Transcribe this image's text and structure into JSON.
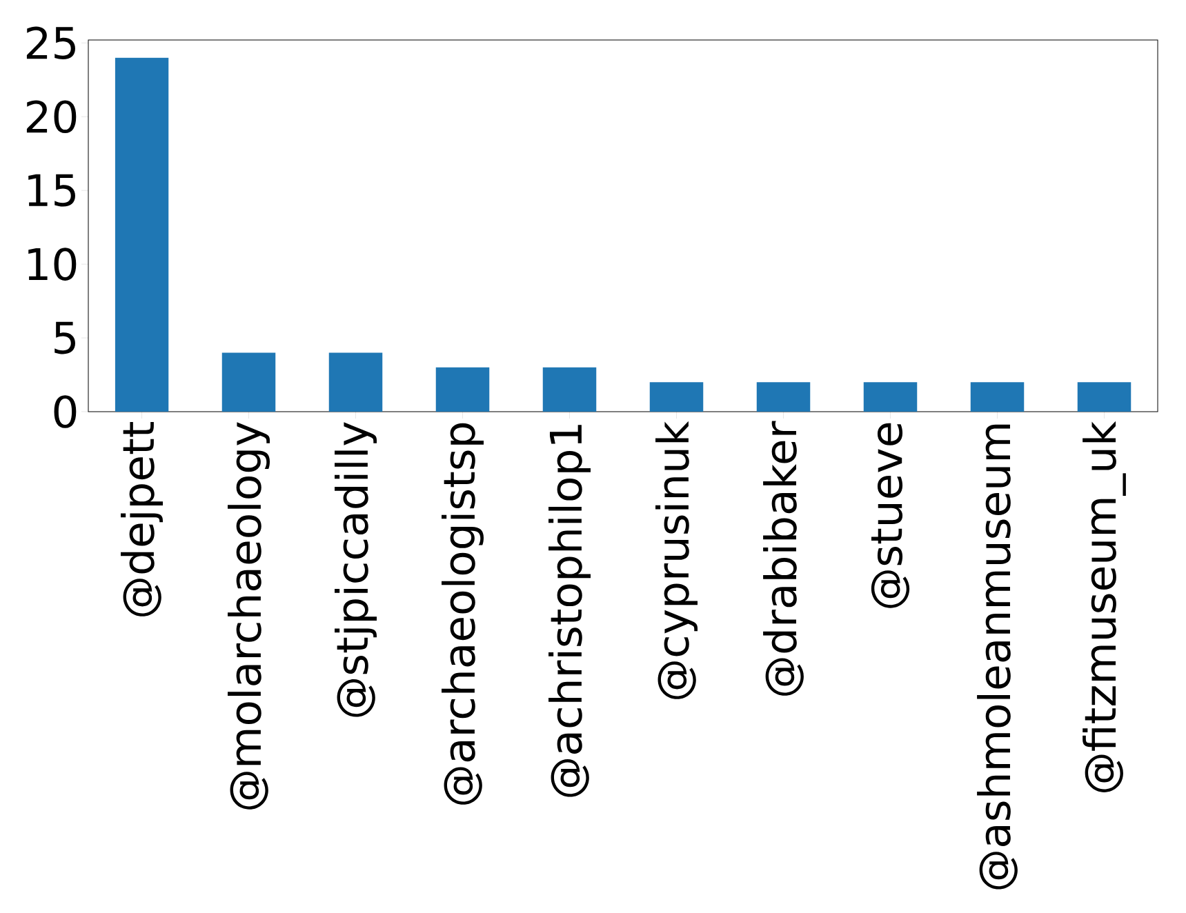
{
  "chart_data": {
    "type": "bar",
    "categories": [
      "@dejpett",
      "@molarchaeology",
      "@stjpiccadilly",
      "@archaeologistsp",
      "@achristophilop1",
      "@cyprusinuk",
      "@drabibaker",
      "@stueve",
      "@ashmoleanmuseum",
      "@fitzmuseum_uk"
    ],
    "values": [
      24,
      4,
      4,
      3,
      3,
      2,
      2,
      2,
      2,
      2
    ],
    "color": "#1f77b4",
    "ylim": [
      0,
      25.2
    ],
    "yticks": [
      0,
      5,
      10,
      15,
      20,
      25
    ],
    "grid": false
  }
}
